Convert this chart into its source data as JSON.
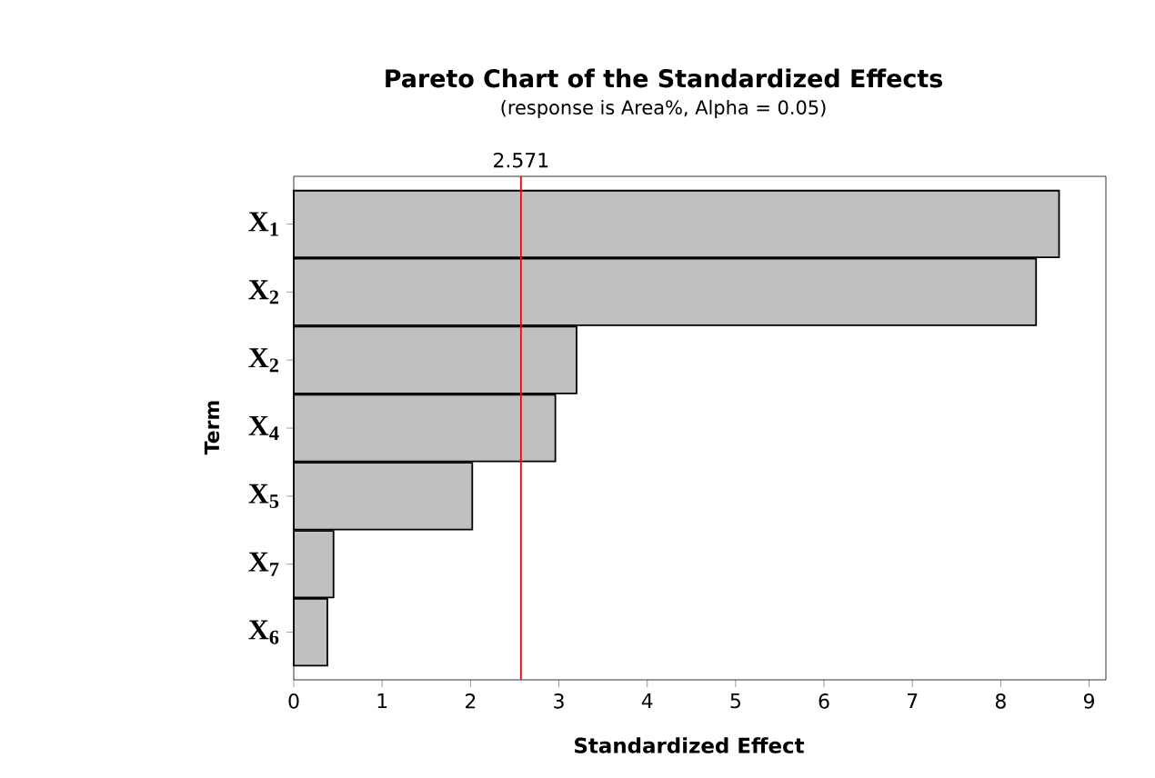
{
  "chart_data": {
    "type": "bar",
    "orientation": "horizontal",
    "title": "Pareto Chart of the Standardized Effects",
    "subtitle": "(response is Area%, Alpha = 0.05)",
    "xlabel": "Standardized Effect",
    "ylabel": "Term",
    "categories": [
      "X$_{1}$",
      "X$_{2}$",
      "X$_{2}$",
      "X$_{4}$",
      "X$_{5}$",
      "X$_{7}$",
      "X$_{6}$"
    ],
    "values": [
      8.66,
      8.4,
      3.2,
      2.96,
      2.02,
      0.45,
      0.38
    ],
    "color": "#c0c0c0",
    "xlim": [
      0,
      9.19
    ],
    "xticks": [
      0,
      1,
      2,
      3,
      4,
      5,
      6,
      7,
      8,
      9
    ],
    "ref_lines": [
      {
        "axis": "x",
        "value": 2.571,
        "label": "2.571",
        "color": "#ff0000"
      }
    ]
  }
}
